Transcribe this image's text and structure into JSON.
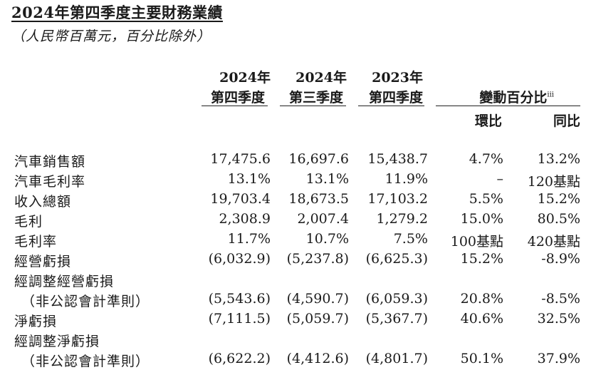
{
  "title": "2024年第四季度主要財務業績",
  "subtitle": "（人民幣百萬元，百分比除外）",
  "headers": {
    "col1": {
      "line1": "2024年",
      "line2": "第四季度"
    },
    "col2": {
      "line1": "2024年",
      "line2": "第三季度"
    },
    "col3": {
      "line1": "2023年",
      "line2": "第四季度"
    },
    "change": "變動百分比",
    "change_note": "iii",
    "qoq": "環比",
    "yoy": "同比"
  },
  "rows": [
    {
      "label": "汽車銷售額",
      "v1": "17,475.6",
      "v2": "16,697.6",
      "v3": "15,438.7",
      "qoq": "4.7%",
      "yoy": "13.2%"
    },
    {
      "label": "汽車毛利率",
      "v1": "13.1%",
      "v2": "13.1%",
      "v3": "11.9%",
      "qoq": "–",
      "yoy": "120基點"
    },
    {
      "label": "收入總額",
      "v1": "19,703.4",
      "v2": "18,673.5",
      "v3": "17,103.2",
      "qoq": "5.5%",
      "yoy": "15.2%"
    },
    {
      "label": "毛利",
      "v1": "2,308.9",
      "v2": "2,007.4",
      "v3": "1,279.2",
      "qoq": "15.0%",
      "yoy": "80.5%"
    },
    {
      "label": "毛利率",
      "v1": "11.7%",
      "v2": "10.7%",
      "v3": "7.5%",
      "qoq": "100基點",
      "yoy": "420基點"
    },
    {
      "label": "經營虧損",
      "v1": "(6,032.9)",
      "v2": "(5,237.8)",
      "v3": "(6,625.3)",
      "qoq": "15.2%",
      "yoy": "-8.9%"
    },
    {
      "label": "經調整經營虧損",
      "v1": "",
      "v2": "",
      "v3": "",
      "qoq": "",
      "yoy": ""
    },
    {
      "label": "（非公認會計準則）",
      "v1": "(5,543.6)",
      "v2": "(4,590.7)",
      "v3": "(6,059.3)",
      "qoq": "20.8%",
      "yoy": "-8.5%"
    },
    {
      "label": "淨虧損",
      "v1": "(7,111.5)",
      "v2": "(5,059.7)",
      "v3": "(5,367.7)",
      "qoq": "40.6%",
      "yoy": "32.5%"
    },
    {
      "label": "經調整淨虧損",
      "v1": "",
      "v2": "",
      "v3": "",
      "qoq": "",
      "yoy": ""
    },
    {
      "label": "（非公認會計準則）",
      "v1": "(6,622.2)",
      "v2": "(4,412.6)",
      "v3": "(4,801.7)",
      "qoq": "50.1%",
      "yoy": "37.9%"
    }
  ]
}
